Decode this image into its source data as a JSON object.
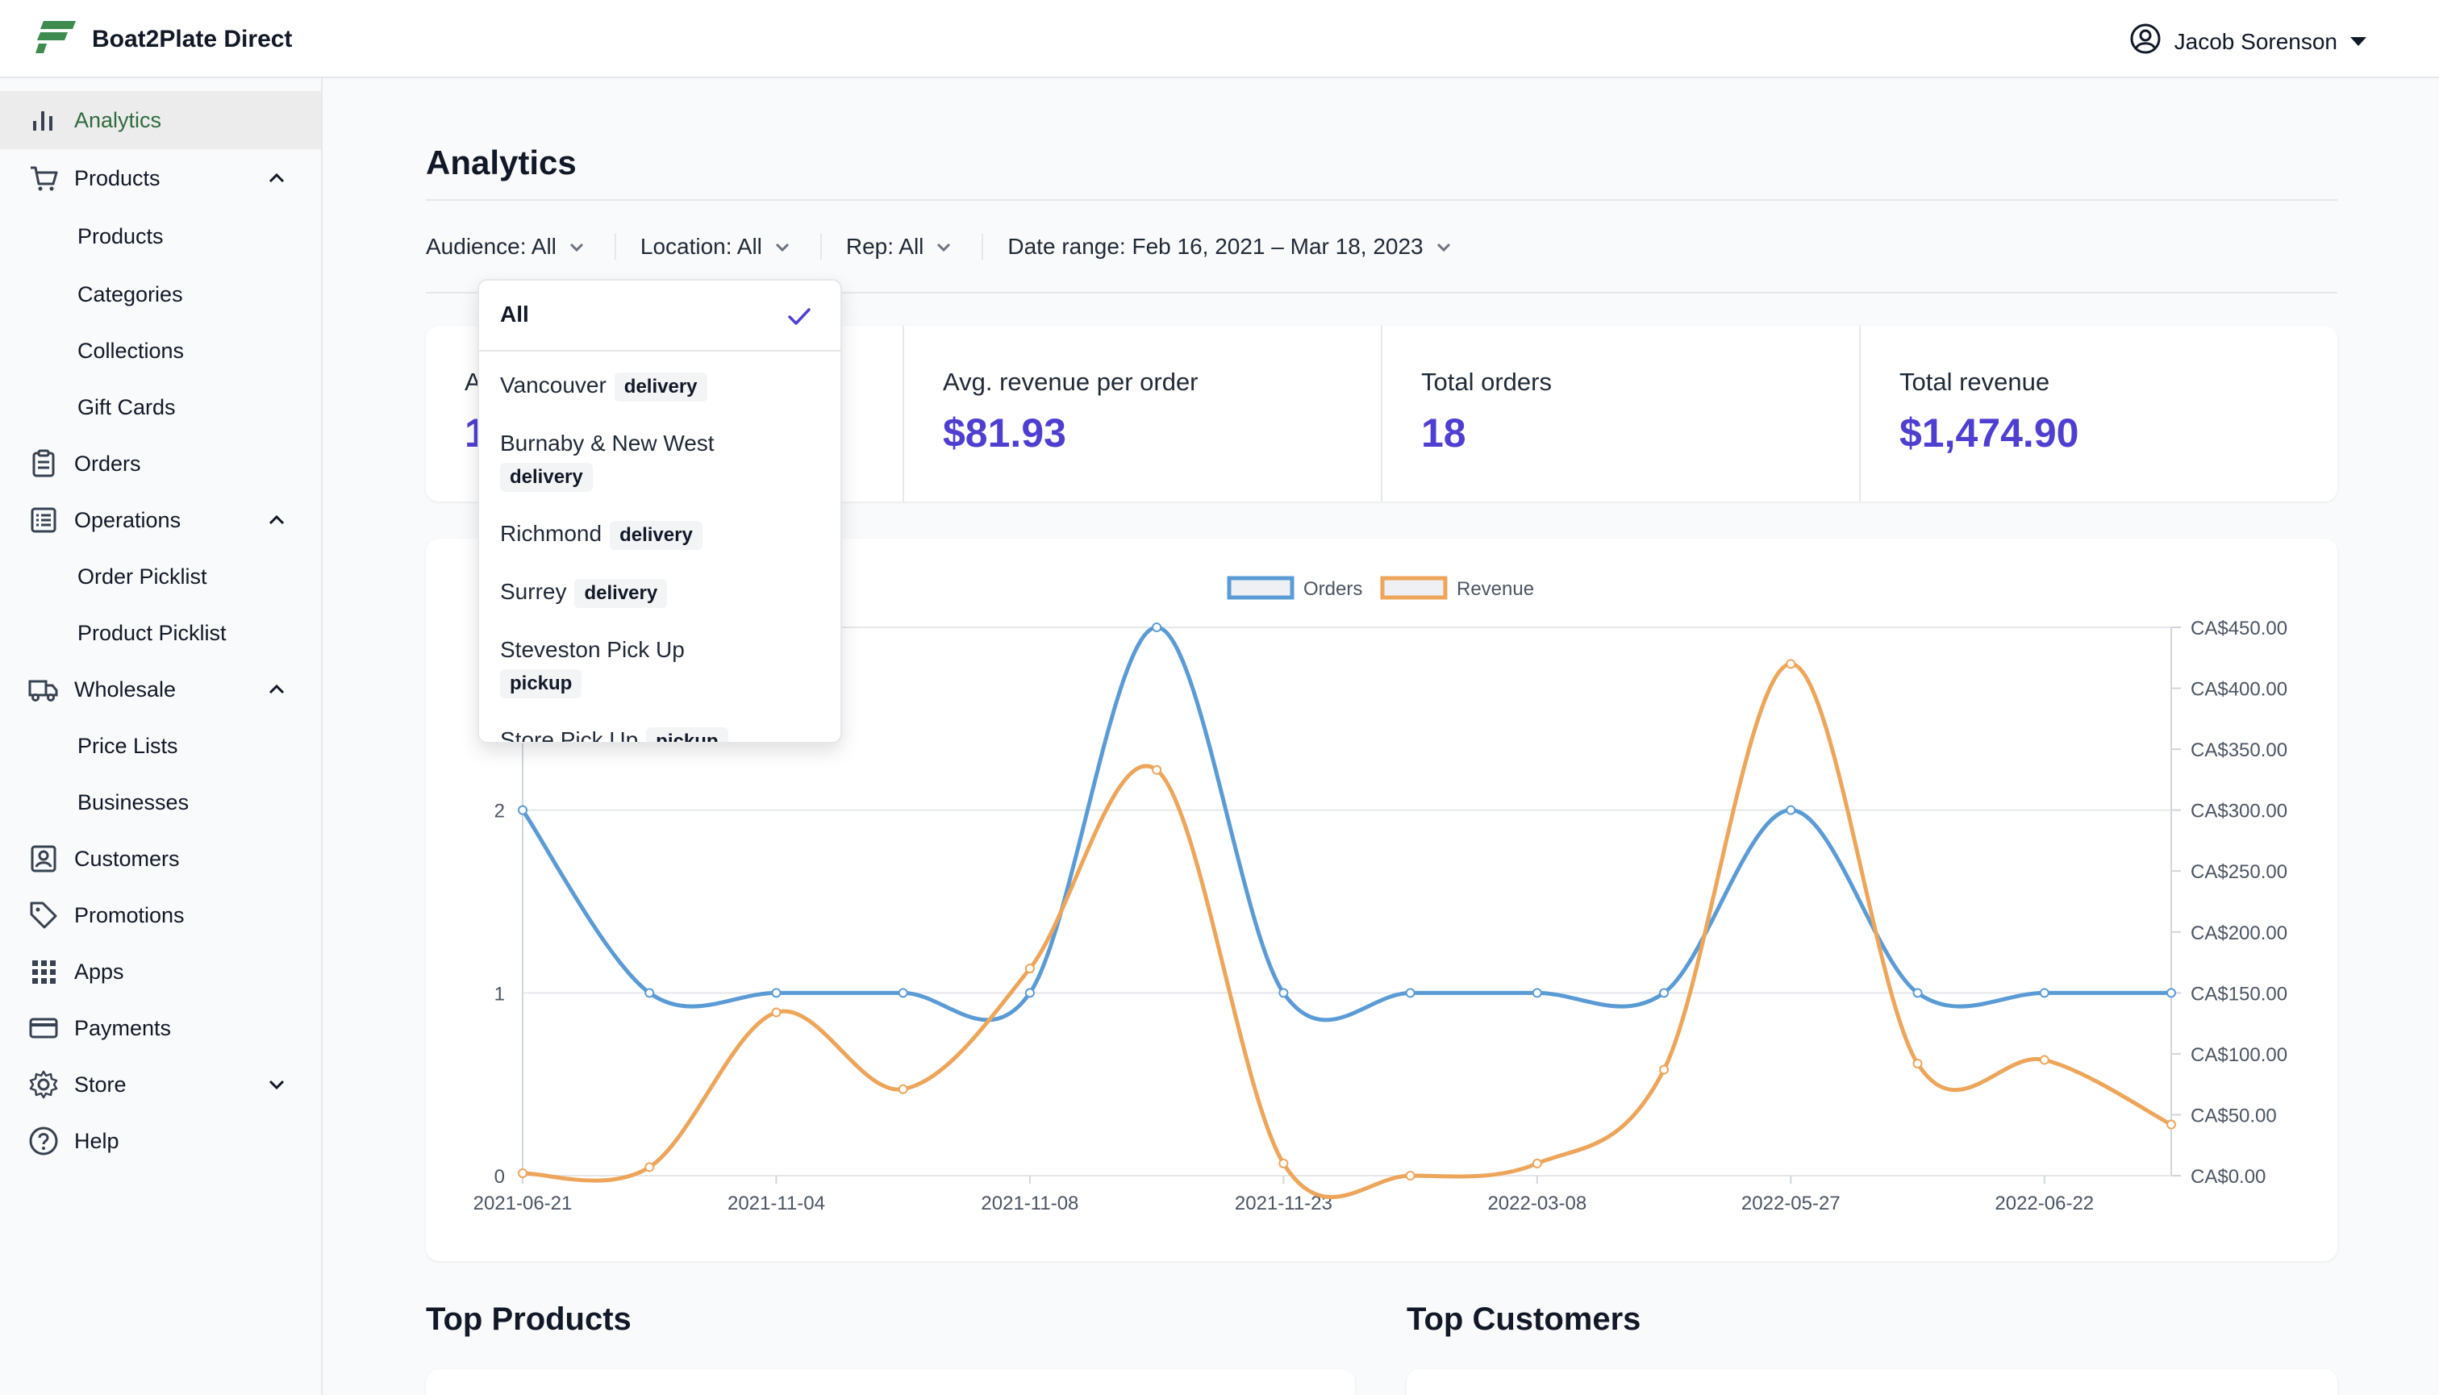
{
  "app": {
    "name": "Boat2Plate Direct"
  },
  "user": {
    "name": "Jacob Sorenson"
  },
  "sidebar": {
    "items": [
      {
        "label": "Analytics"
      },
      {
        "label": "Products"
      },
      {
        "label": "Products"
      },
      {
        "label": "Categories"
      },
      {
        "label": "Collections"
      },
      {
        "label": "Gift Cards"
      },
      {
        "label": "Orders"
      },
      {
        "label": "Operations"
      },
      {
        "label": "Order Picklist"
      },
      {
        "label": "Product Picklist"
      },
      {
        "label": "Wholesale"
      },
      {
        "label": "Price Lists"
      },
      {
        "label": "Businesses"
      },
      {
        "label": "Customers"
      },
      {
        "label": "Promotions"
      },
      {
        "label": "Apps"
      },
      {
        "label": "Payments"
      },
      {
        "label": "Store"
      },
      {
        "label": "Help"
      }
    ]
  },
  "main": {
    "title": "Analytics",
    "filters": [
      {
        "label": "Audience: All"
      },
      {
        "label": "Location: All"
      },
      {
        "label": "Rep: All"
      },
      {
        "label": "Date range: Feb 16, 2021 – Mar 18, 2023"
      }
    ],
    "stats": [
      {
        "label": "A",
        "value": "1"
      },
      {
        "label": "Avg. revenue per order",
        "value": "$81.93"
      },
      {
        "label": "Total orders",
        "value": "18"
      },
      {
        "label": "Total revenue",
        "value": "$1,474.90"
      }
    ],
    "sections": {
      "top_products": "Top Products",
      "top_customers": "Top Customers"
    }
  },
  "dropdown": {
    "selected": "All",
    "options": [
      {
        "name": "Vancouver",
        "tag": "delivery"
      },
      {
        "name": "Burnaby & New West",
        "tag": "delivery"
      },
      {
        "name": "Richmond",
        "tag": "delivery"
      },
      {
        "name": "Surrey",
        "tag": "delivery"
      },
      {
        "name": "Steveston Pick Up",
        "tag": "pickup"
      },
      {
        "name": "Store Pick Up",
        "tag": "pickup"
      }
    ]
  },
  "colors": {
    "accent": "#4f3fd1",
    "orders": "#5b9bd5",
    "revenue": "#eda55a",
    "active_nav": "#2f6b3e"
  },
  "chart_data": {
    "type": "line",
    "x_tick_labels": [
      "2021-06-21",
      "2021-11-04",
      "2021-11-08",
      "2021-11-23",
      "2022-03-08",
      "2022-05-27",
      "2022-06-22"
    ],
    "point_count": 14,
    "series": [
      {
        "name": "Orders",
        "axis": "left",
        "values": [
          2,
          1,
          1,
          1,
          1,
          3,
          1,
          1,
          1,
          1,
          2,
          1,
          1,
          1
        ]
      },
      {
        "name": "Revenue",
        "axis": "right",
        "values": [
          2,
          7,
          134,
          71,
          170,
          333,
          10,
          0,
          10,
          87,
          420,
          92,
          95,
          42
        ]
      }
    ],
    "y_left": {
      "ticks": [
        "0",
        "1",
        "2"
      ],
      "range": [
        0,
        3
      ]
    },
    "y_right": {
      "ticks": [
        "CA$0.00",
        "CA$50.00",
        "CA$100.00",
        "CA$150.00",
        "CA$200.00",
        "CA$250.00",
        "CA$300.00",
        "CA$350.00",
        "CA$400.00",
        "CA$450.00"
      ],
      "range": [
        0,
        450
      ]
    },
    "legend": "top-center"
  }
}
